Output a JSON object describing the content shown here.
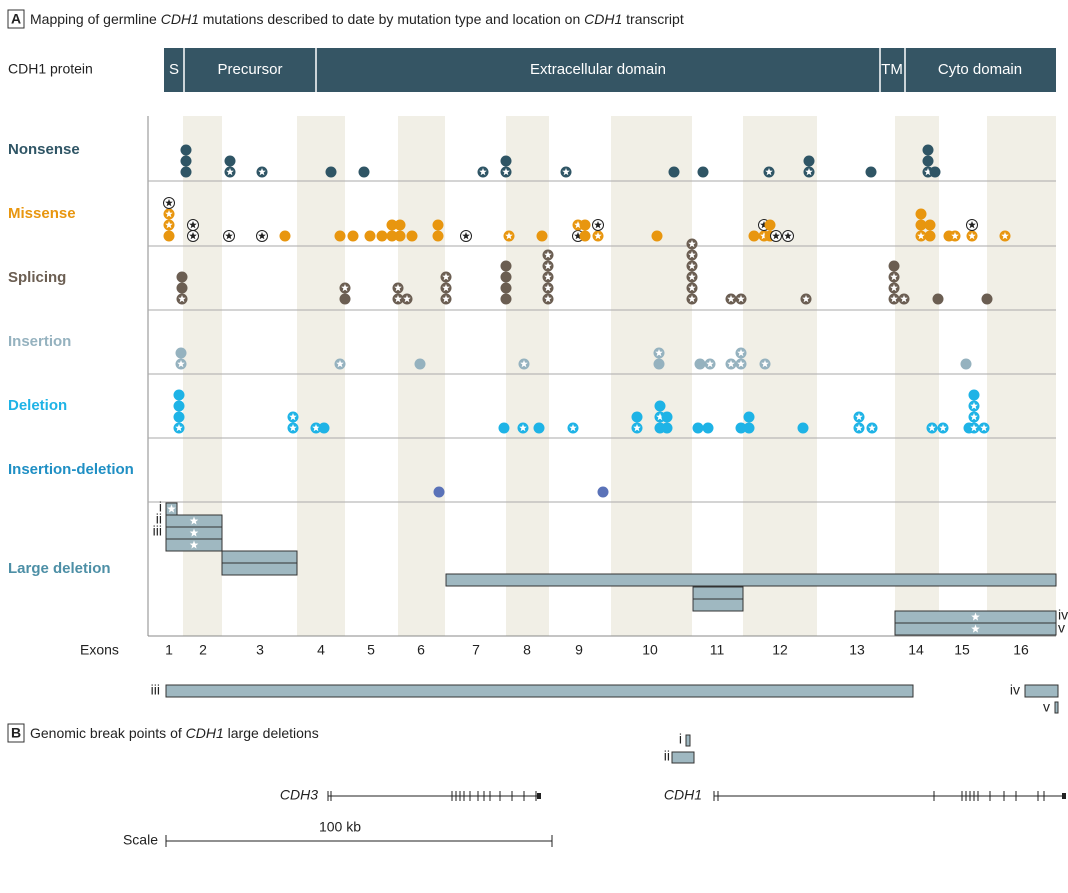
{
  "panel_a": {
    "label": "A",
    "title": [
      "Mapping of germline ",
      "CDH1",
      " mutations described to date by mutation type and location on ",
      "CDH1",
      " transcript"
    ],
    "protein_label": "CDH1 protein",
    "domains": [
      "S",
      "Precursor",
      "Extracellular domain",
      "TM",
      "Cyto domain"
    ],
    "rows": [
      "Nonsense",
      "Missense",
      "Splicing",
      "Insertion",
      "Deletion",
      "Insertion-deletion",
      "Large deletion"
    ],
    "exons_label": "Exons",
    "exons": [
      "1",
      "2",
      "3",
      "4",
      "5",
      "6",
      "7",
      "8",
      "9",
      "10",
      "11",
      "12",
      "13",
      "14",
      "15",
      "16"
    ],
    "large_deletion_labels": [
      "i",
      "ii",
      "iii",
      "iv",
      "v"
    ]
  },
  "panel_b": {
    "label": "B",
    "title": [
      "Genomic break points of ",
      "CDH1",
      " large deletions"
    ],
    "deletion_labels": [
      "i",
      "ii",
      "iii",
      "iv",
      "v"
    ],
    "genes": [
      "CDH3",
      "CDH1"
    ],
    "scale_label": "Scale",
    "scale_length": "100 kb"
  }
}
